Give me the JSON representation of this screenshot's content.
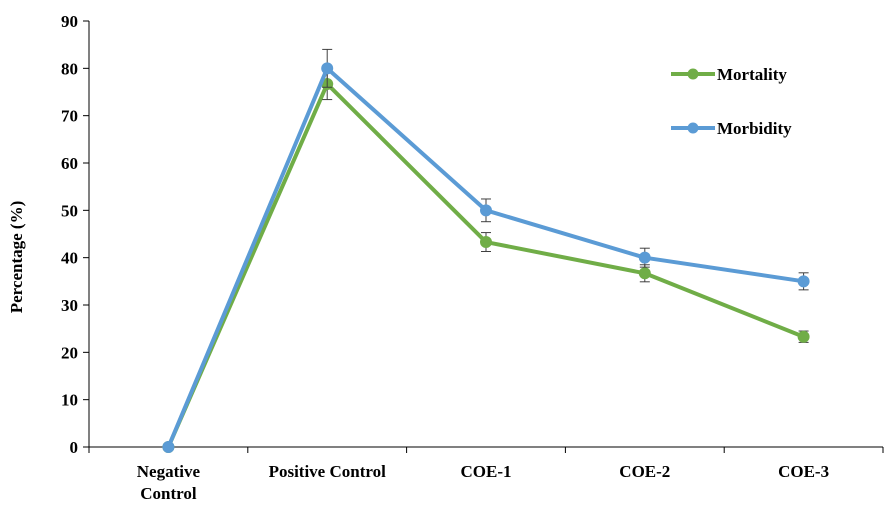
{
  "chart_data": {
    "type": "line",
    "categories": [
      "Negative Control",
      "Positive Control",
      "COE-1",
      "COE-2",
      "COE-3"
    ],
    "series": [
      {
        "name": "Mortality",
        "values": [
          0,
          76.7,
          43.3,
          36.7,
          23.3
        ],
        "errors": [
          0,
          3.3,
          2.0,
          1.8,
          1.2
        ],
        "color": "#70ad47"
      },
      {
        "name": "Morbidity",
        "values": [
          0,
          80.0,
          50.0,
          40.0,
          35.0
        ],
        "errors": [
          0,
          4.0,
          2.4,
          2.0,
          1.8
        ],
        "color": "#5b9bd5"
      }
    ],
    "ylabel": "Percentage (%)",
    "xlabel": "",
    "ylim": [
      0,
      90
    ],
    "yticks": [
      "0",
      "10",
      "20",
      "30",
      "40",
      "50",
      "60",
      "70",
      "80",
      "90"
    ],
    "grid": false,
    "legend_position": "top-right"
  }
}
